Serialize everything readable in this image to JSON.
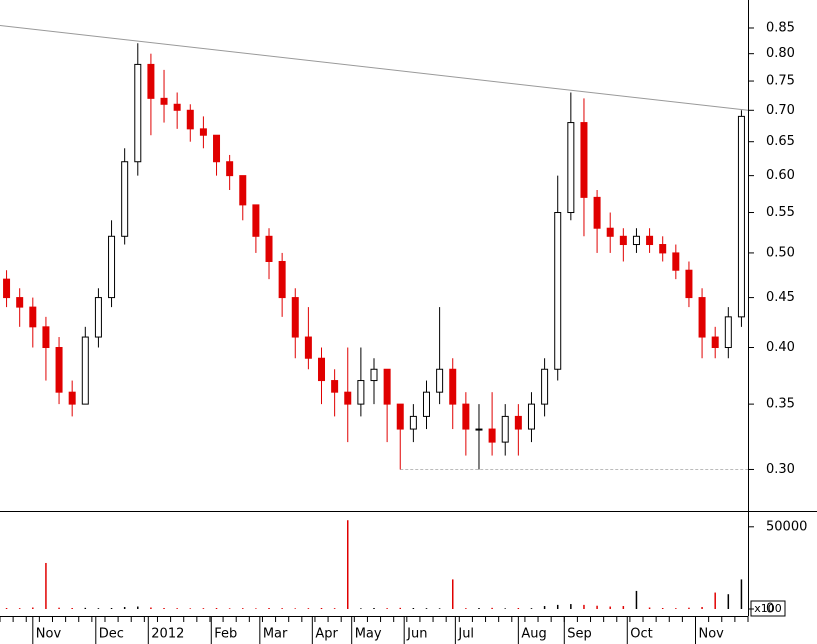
{
  "chart_data": [
    {
      "type": "candlestick",
      "xlim": [
        0,
        57
      ],
      "ylim": [
        0.272,
        0.908
      ],
      "log_scale": true,
      "yticks": [
        {
          "value": 0.3,
          "label": "0.30"
        },
        0.35,
        {
          "value": 0.4,
          "label": "0.40"
        },
        0.45,
        {
          "value": 0.5,
          "label": "0.50"
        },
        0.55,
        {
          "value": 0.6,
          "label": "0.60"
        },
        0.65,
        {
          "value": 0.7,
          "label": "0.70"
        },
        0.75,
        {
          "value": 0.8,
          "label": "0.80"
        },
        0.85
      ],
      "up_color": "#000000",
      "down_color": "#e00000",
      "open": [
        0.47,
        0.45,
        0.44,
        0.42,
        0.4,
        0.36,
        0.35,
        0.41,
        0.45,
        0.52,
        0.62,
        0.78,
        0.72,
        0.71,
        0.7,
        0.67,
        0.66,
        0.62,
        0.6,
        0.56,
        0.52,
        0.49,
        0.45,
        0.41,
        0.39,
        0.37,
        0.36,
        0.35,
        0.37,
        0.38,
        0.35,
        0.33,
        0.34,
        0.36,
        0.38,
        0.35,
        0.33,
        0.33,
        0.32,
        0.34,
        0.33,
        0.35,
        0.38,
        0.55,
        0.68,
        0.57,
        0.53,
        0.52,
        0.51,
        0.52,
        0.51,
        0.5,
        0.48,
        0.45,
        0.41,
        0.4,
        0.43
      ],
      "high": [
        0.48,
        0.46,
        0.45,
        0.43,
        0.41,
        0.37,
        0.42,
        0.46,
        0.54,
        0.64,
        0.82,
        0.8,
        0.77,
        0.73,
        0.71,
        0.69,
        0.66,
        0.63,
        0.6,
        0.56,
        0.53,
        0.5,
        0.46,
        0.44,
        0.4,
        0.38,
        0.4,
        0.4,
        0.39,
        0.38,
        0.35,
        0.35,
        0.37,
        0.44,
        0.39,
        0.36,
        0.35,
        0.36,
        0.35,
        0.35,
        0.36,
        0.39,
        0.6,
        0.73,
        0.72,
        0.58,
        0.55,
        0.53,
        0.53,
        0.53,
        0.52,
        0.51,
        0.49,
        0.46,
        0.42,
        0.44,
        0.7
      ],
      "low": [
        0.44,
        0.42,
        0.4,
        0.37,
        0.35,
        0.34,
        0.35,
        0.4,
        0.44,
        0.51,
        0.6,
        0.66,
        0.68,
        0.67,
        0.65,
        0.64,
        0.6,
        0.58,
        0.54,
        0.5,
        0.47,
        0.43,
        0.39,
        0.38,
        0.35,
        0.34,
        0.32,
        0.34,
        0.35,
        0.32,
        0.3,
        0.32,
        0.33,
        0.35,
        0.33,
        0.31,
        0.3,
        0.31,
        0.31,
        0.31,
        0.32,
        0.34,
        0.37,
        0.54,
        0.52,
        0.5,
        0.5,
        0.49,
        0.5,
        0.5,
        0.49,
        0.47,
        0.44,
        0.39,
        0.39,
        0.39,
        0.42
      ],
      "close": [
        0.45,
        0.44,
        0.42,
        0.4,
        0.36,
        0.35,
        0.41,
        0.45,
        0.52,
        0.62,
        0.78,
        0.72,
        0.71,
        0.7,
        0.67,
        0.66,
        0.62,
        0.6,
        0.56,
        0.52,
        0.49,
        0.45,
        0.41,
        0.39,
        0.37,
        0.36,
        0.35,
        0.37,
        0.38,
        0.35,
        0.33,
        0.34,
        0.36,
        0.38,
        0.35,
        0.33,
        0.33,
        0.32,
        0.34,
        0.33,
        0.35,
        0.38,
        0.55,
        0.68,
        0.57,
        0.53,
        0.52,
        0.51,
        0.52,
        0.51,
        0.5,
        0.48,
        0.45,
        0.41,
        0.4,
        0.43,
        0.69
      ],
      "trendline": {
        "x": [
          0,
          57
        ],
        "y": [
          0.855,
          0.7
        ],
        "color": "#999999"
      },
      "support": {
        "x": [
          30.5,
          57
        ],
        "y": [
          0.3,
          0.3
        ],
        "color": "#bbbbbb"
      }
    },
    {
      "type": "bar",
      "xlim": [
        0,
        57
      ],
      "ylim": [
        0,
        59000
      ],
      "yticks": [
        0,
        50000
      ],
      "unit_label": "x100",
      "up_color": "#000000",
      "down_color": "#e00000",
      "values": [
        600,
        500,
        900,
        28000,
        800,
        600,
        700,
        500,
        600,
        1200,
        1500,
        900,
        600,
        500,
        400,
        500,
        600,
        400,
        500,
        400,
        600,
        500,
        400,
        500,
        600,
        500,
        54000,
        400,
        600,
        500,
        700,
        600,
        500,
        400,
        18000,
        500,
        600,
        700,
        400,
        600,
        500,
        1800,
        2500,
        3000,
        2500,
        2000,
        1500,
        1800,
        11000,
        900,
        600,
        500,
        800,
        1200,
        10000,
        9000,
        18000
      ],
      "xticks": [
        {
          "value": 2.5,
          "label": "Nov"
        },
        {
          "value": 7.3,
          "label": "Dec"
        },
        {
          "value": 11.3,
          "label": "2012"
        },
        {
          "value": 16.1,
          "label": "Feb"
        },
        {
          "value": 19.8,
          "label": "Mar"
        },
        {
          "value": 23.8,
          "label": "Apr"
        },
        {
          "value": 26.8,
          "label": "May"
        },
        {
          "value": 30.8,
          "label": "Jun"
        },
        {
          "value": 34.7,
          "label": "Jul"
        },
        {
          "value": 39.5,
          "label": "Aug"
        },
        {
          "value": 43,
          "label": "Sep"
        },
        {
          "value": 47.8,
          "label": "Oct"
        },
        {
          "value": 53,
          "label": "Nov"
        }
      ]
    }
  ]
}
